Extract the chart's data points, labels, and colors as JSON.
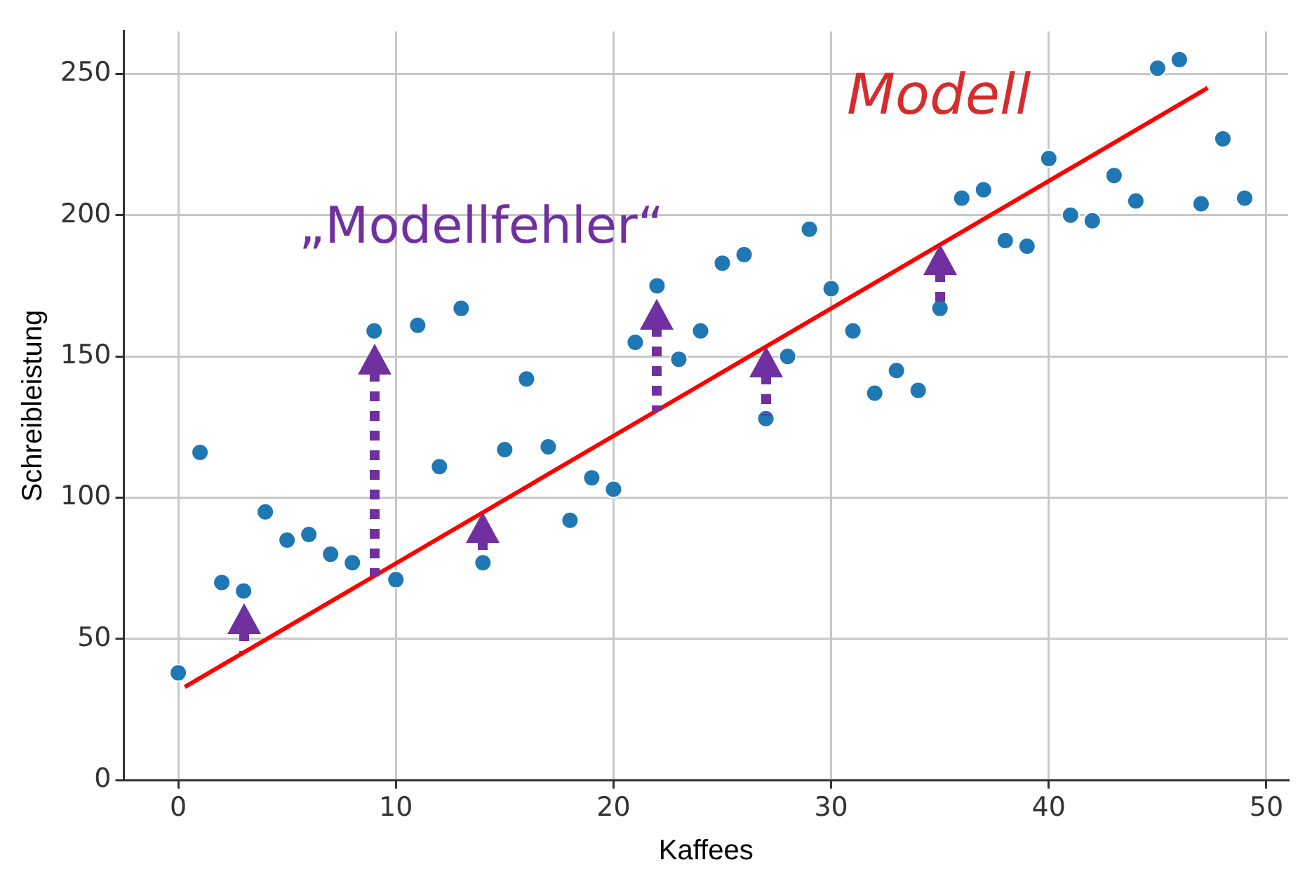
{
  "chart_data": {
    "type": "scatter",
    "xlabel": "Kaffees",
    "ylabel": "Schreibleistung",
    "xlim": [
      -2.5,
      51
    ],
    "ylim": [
      0,
      265
    ],
    "xticks": [
      0,
      10,
      20,
      30,
      40,
      50
    ],
    "yticks": [
      0,
      50,
      100,
      150,
      200,
      250
    ],
    "grid": true,
    "legend": false,
    "x": [
      0,
      1,
      2,
      3,
      4,
      5,
      6,
      7,
      8,
      9,
      10,
      11,
      12,
      13,
      14,
      15,
      16,
      17,
      18,
      19,
      20,
      21,
      22,
      23,
      24,
      25,
      26,
      27,
      28,
      29,
      30,
      31,
      32,
      33,
      34,
      35,
      36,
      37,
      38,
      39,
      40,
      41,
      42,
      43,
      44,
      45,
      46,
      47,
      48,
      49
    ],
    "series": [
      {
        "color": "#1f77b4",
        "marker": "circle",
        "values": [
          38,
          116,
          70,
          67,
          95,
          85,
          87,
          80,
          77,
          159,
          71,
          161,
          111,
          167,
          77,
          117,
          142,
          118,
          92,
          107,
          103,
          155,
          175,
          149,
          159,
          183,
          186,
          128,
          150,
          195,
          174,
          159,
          137,
          145,
          138,
          167,
          206,
          209,
          191,
          189,
          220,
          200,
          198,
          214,
          205,
          252,
          255,
          204,
          227,
          206
        ]
      },
      {
        "type": "line",
        "color": "#ff0000",
        "marker": "none",
        "x": [
          0.3,
          47.3
        ],
        "values": [
          33,
          245
        ]
      }
    ],
    "annotations": [
      "Modell",
      "„Modellfehler“"
    ]
  }
}
